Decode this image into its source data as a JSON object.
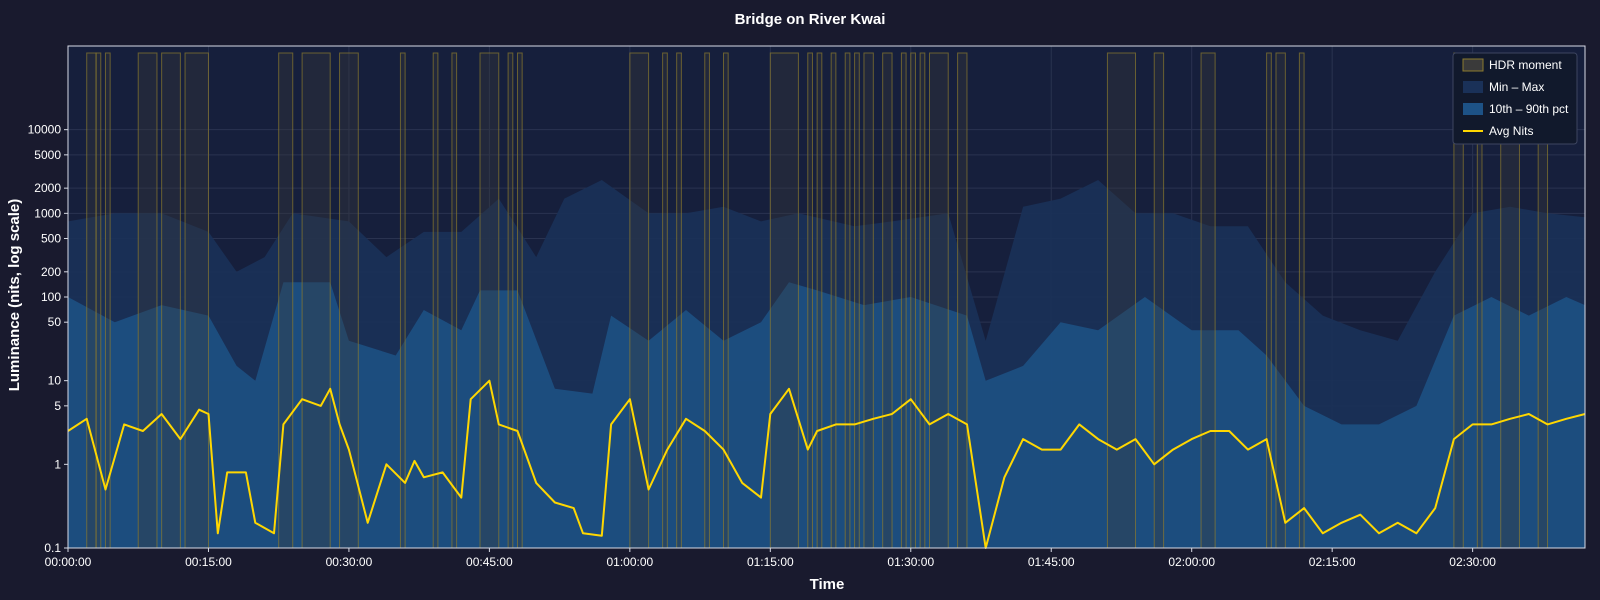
{
  "chart_data": {
    "type": "area",
    "title": "Bridge on River Kwai",
    "xlabel": "Time",
    "ylabel": "Luminance (nits, log scale)",
    "y_scale": "log",
    "ylim": [
      0.1,
      100000
    ],
    "xlim_minutes": [
      0,
      162
    ],
    "grid": true,
    "legend_position": "top-right",
    "y_ticks": [
      0.1,
      1,
      5,
      10,
      50,
      100,
      200,
      500,
      1000,
      2000,
      5000,
      10000
    ],
    "y_tick_labels": [
      "0.1",
      "1",
      "5",
      "10",
      "50",
      "100",
      "200",
      "500",
      "1000",
      "2000",
      "5000",
      "10000"
    ],
    "x_ticks_minutes": [
      0,
      15,
      30,
      45,
      60,
      75,
      90,
      105,
      120,
      135,
      150
    ],
    "x_tick_labels": [
      "00:00:00",
      "00:15:00",
      "00:30:00",
      "00:45:00",
      "01:00:00",
      "01:15:00",
      "01:30:00",
      "01:45:00",
      "02:00:00",
      "02:15:00",
      "02:30:00"
    ],
    "legend": [
      "HDR moment",
      "Min – Max",
      "10th – 90th pct",
      "Avg Nits"
    ],
    "colors": {
      "background": "#191a2e",
      "plot_background": "#161f3c",
      "min_max": "#1a3158",
      "pct_band": "#1d5286",
      "avg_line": "#ffd700",
      "hdr_fill": "#3a3a3a",
      "hdr_edge": "#8c7a2e"
    },
    "hdr_moments_minutes": [
      [
        2,
        3
      ],
      [
        3,
        3.5
      ],
      [
        4,
        4.5
      ],
      [
        7.5,
        9.5
      ],
      [
        10,
        12
      ],
      [
        12.5,
        15
      ],
      [
        22.5,
        24
      ],
      [
        25,
        28
      ],
      [
        29,
        31
      ],
      [
        35.5,
        36
      ],
      [
        39,
        39.5
      ],
      [
        41,
        41.5
      ],
      [
        44,
        46
      ],
      [
        47,
        47.5
      ],
      [
        48,
        48.5
      ],
      [
        60,
        62
      ],
      [
        63.5,
        64
      ],
      [
        65,
        65.5
      ],
      [
        68,
        68.5
      ],
      [
        70,
        70.5
      ],
      [
        75,
        78
      ],
      [
        79,
        79.5
      ],
      [
        80,
        80.5
      ],
      [
        81.5,
        82
      ],
      [
        83,
        83.5
      ],
      [
        84,
        84.5
      ],
      [
        85,
        86
      ],
      [
        87,
        88
      ],
      [
        89,
        89.5
      ],
      [
        90,
        90.5
      ],
      [
        91,
        91.5
      ],
      [
        92,
        94
      ],
      [
        95,
        96
      ],
      [
        111,
        114
      ],
      [
        116,
        117
      ],
      [
        121,
        122.5
      ],
      [
        128,
        128.5
      ],
      [
        129,
        130
      ],
      [
        131.5,
        132
      ],
      [
        148,
        149
      ],
      [
        150.5,
        151
      ],
      [
        153,
        155
      ],
      [
        157,
        158
      ]
    ],
    "avg_nits_series": [
      {
        "t": 0,
        "v": 2.5
      },
      {
        "t": 2,
        "v": 3.5
      },
      {
        "t": 4,
        "v": 0.5
      },
      {
        "t": 6,
        "v": 3
      },
      {
        "t": 8,
        "v": 2.5
      },
      {
        "t": 10,
        "v": 4
      },
      {
        "t": 12,
        "v": 2
      },
      {
        "t": 14,
        "v": 4.5
      },
      {
        "t": 15,
        "v": 4
      },
      {
        "t": 16,
        "v": 0.15
      },
      {
        "t": 17,
        "v": 0.8
      },
      {
        "t": 19,
        "v": 0.8
      },
      {
        "t": 20,
        "v": 0.2
      },
      {
        "t": 22,
        "v": 0.15
      },
      {
        "t": 23,
        "v": 3
      },
      {
        "t": 25,
        "v": 6
      },
      {
        "t": 27,
        "v": 5
      },
      {
        "t": 28,
        "v": 8
      },
      {
        "t": 29,
        "v": 3
      },
      {
        "t": 30,
        "v": 1.5
      },
      {
        "t": 32,
        "v": 0.2
      },
      {
        "t": 34,
        "v": 1
      },
      {
        "t": 36,
        "v": 0.6
      },
      {
        "t": 37,
        "v": 1.1
      },
      {
        "t": 38,
        "v": 0.7
      },
      {
        "t": 40,
        "v": 0.8
      },
      {
        "t": 42,
        "v": 0.4
      },
      {
        "t": 43,
        "v": 6
      },
      {
        "t": 45,
        "v": 10
      },
      {
        "t": 46,
        "v": 3
      },
      {
        "t": 48,
        "v": 2.5
      },
      {
        "t": 50,
        "v": 0.6
      },
      {
        "t": 52,
        "v": 0.35
      },
      {
        "t": 54,
        "v": 0.3
      },
      {
        "t": 55,
        "v": 0.15
      },
      {
        "t": 57,
        "v": 0.14
      },
      {
        "t": 58,
        "v": 3
      },
      {
        "t": 60,
        "v": 6
      },
      {
        "t": 62,
        "v": 0.5
      },
      {
        "t": 64,
        "v": 1.5
      },
      {
        "t": 66,
        "v": 3.5
      },
      {
        "t": 68,
        "v": 2.5
      },
      {
        "t": 70,
        "v": 1.5
      },
      {
        "t": 72,
        "v": 0.6
      },
      {
        "t": 74,
        "v": 0.4
      },
      {
        "t": 75,
        "v": 4
      },
      {
        "t": 77,
        "v": 8
      },
      {
        "t": 79,
        "v": 1.5
      },
      {
        "t": 80,
        "v": 2.5
      },
      {
        "t": 82,
        "v": 3
      },
      {
        "t": 84,
        "v": 3
      },
      {
        "t": 86,
        "v": 3.5
      },
      {
        "t": 88,
        "v": 4
      },
      {
        "t": 90,
        "v": 6
      },
      {
        "t": 92,
        "v": 3
      },
      {
        "t": 94,
        "v": 4
      },
      {
        "t": 96,
        "v": 3
      },
      {
        "t": 98,
        "v": 0.1
      },
      {
        "t": 100,
        "v": 0.7
      },
      {
        "t": 102,
        "v": 2
      },
      {
        "t": 104,
        "v": 1.5
      },
      {
        "t": 106,
        "v": 1.5
      },
      {
        "t": 108,
        "v": 3
      },
      {
        "t": 110,
        "v": 2
      },
      {
        "t": 112,
        "v": 1.5
      },
      {
        "t": 114,
        "v": 2
      },
      {
        "t": 116,
        "v": 1
      },
      {
        "t": 118,
        "v": 1.5
      },
      {
        "t": 120,
        "v": 2
      },
      {
        "t": 122,
        "v": 2.5
      },
      {
        "t": 124,
        "v": 2.5
      },
      {
        "t": 126,
        "v": 1.5
      },
      {
        "t": 128,
        "v": 2
      },
      {
        "t": 130,
        "v": 0.2
      },
      {
        "t": 132,
        "v": 0.3
      },
      {
        "t": 134,
        "v": 0.15
      },
      {
        "t": 136,
        "v": 0.2
      },
      {
        "t": 138,
        "v": 0.25
      },
      {
        "t": 140,
        "v": 0.15
      },
      {
        "t": 142,
        "v": 0.2
      },
      {
        "t": 144,
        "v": 0.15
      },
      {
        "t": 146,
        "v": 0.3
      },
      {
        "t": 148,
        "v": 2
      },
      {
        "t": 150,
        "v": 3
      },
      {
        "t": 152,
        "v": 3
      },
      {
        "t": 154,
        "v": 3.5
      },
      {
        "t": 156,
        "v": 4
      },
      {
        "t": 158,
        "v": 3
      },
      {
        "t": 160,
        "v": 3.5
      },
      {
        "t": 162,
        "v": 4
      }
    ],
    "pct_band_series": [
      {
        "t": 0,
        "lo": 0.1,
        "hi": 100
      },
      {
        "t": 5,
        "lo": 0.1,
        "hi": 50
      },
      {
        "t": 10,
        "lo": 0.1,
        "hi": 80
      },
      {
        "t": 15,
        "lo": 0.1,
        "hi": 60
      },
      {
        "t": 18,
        "lo": 0.1,
        "hi": 15
      },
      {
        "t": 20,
        "lo": 0.1,
        "hi": 10
      },
      {
        "t": 23,
        "lo": 0.1,
        "hi": 150
      },
      {
        "t": 28,
        "lo": 0.1,
        "hi": 150
      },
      {
        "t": 30,
        "lo": 0.1,
        "hi": 30
      },
      {
        "t": 35,
        "lo": 0.1,
        "hi": 20
      },
      {
        "t": 38,
        "lo": 0.1,
        "hi": 70
      },
      {
        "t": 42,
        "lo": 0.1,
        "hi": 40
      },
      {
        "t": 44,
        "lo": 0.1,
        "hi": 120
      },
      {
        "t": 48,
        "lo": 0.1,
        "hi": 120
      },
      {
        "t": 52,
        "lo": 0.1,
        "hi": 8
      },
      {
        "t": 56,
        "lo": 0.1,
        "hi": 7
      },
      {
        "t": 58,
        "lo": 0.1,
        "hi": 60
      },
      {
        "t": 62,
        "lo": 0.1,
        "hi": 30
      },
      {
        "t": 66,
        "lo": 0.1,
        "hi": 70
      },
      {
        "t": 70,
        "lo": 0.1,
        "hi": 30
      },
      {
        "t": 74,
        "lo": 0.1,
        "hi": 50
      },
      {
        "t": 77,
        "lo": 0.1,
        "hi": 150
      },
      {
        "t": 80,
        "lo": 0.1,
        "hi": 120
      },
      {
        "t": 85,
        "lo": 0.1,
        "hi": 80
      },
      {
        "t": 90,
        "lo": 0.1,
        "hi": 100
      },
      {
        "t": 96,
        "lo": 0.1,
        "hi": 60
      },
      {
        "t": 98,
        "lo": 0.1,
        "hi": 10
      },
      {
        "t": 102,
        "lo": 0.1,
        "hi": 15
      },
      {
        "t": 106,
        "lo": 0.1,
        "hi": 50
      },
      {
        "t": 110,
        "lo": 0.1,
        "hi": 40
      },
      {
        "t": 115,
        "lo": 0.1,
        "hi": 100
      },
      {
        "t": 120,
        "lo": 0.1,
        "hi": 40
      },
      {
        "t": 125,
        "lo": 0.1,
        "hi": 40
      },
      {
        "t": 128,
        "lo": 0.1,
        "hi": 20
      },
      {
        "t": 132,
        "lo": 0.1,
        "hi": 5
      },
      {
        "t": 136,
        "lo": 0.1,
        "hi": 3
      },
      {
        "t": 140,
        "lo": 0.1,
        "hi": 3
      },
      {
        "t": 144,
        "lo": 0.1,
        "hi": 5
      },
      {
        "t": 148,
        "lo": 0.1,
        "hi": 60
      },
      {
        "t": 152,
        "lo": 0.1,
        "hi": 100
      },
      {
        "t": 156,
        "lo": 0.1,
        "hi": 60
      },
      {
        "t": 160,
        "lo": 0.1,
        "hi": 100
      },
      {
        "t": 162,
        "lo": 0.1,
        "hi": 80
      }
    ],
    "min_max_series": [
      {
        "t": 0,
        "lo": 0.1,
        "hi": 800
      },
      {
        "t": 5,
        "lo": 0.1,
        "hi": 1000
      },
      {
        "t": 10,
        "lo": 0.1,
        "hi": 1000
      },
      {
        "t": 15,
        "lo": 0.1,
        "hi": 600
      },
      {
        "t": 18,
        "lo": 0.1,
        "hi": 200
      },
      {
        "t": 21,
        "lo": 0.1,
        "hi": 300
      },
      {
        "t": 24,
        "lo": 0.1,
        "hi": 1000
      },
      {
        "t": 30,
        "lo": 0.1,
        "hi": 800
      },
      {
        "t": 34,
        "lo": 0.1,
        "hi": 300
      },
      {
        "t": 38,
        "lo": 0.1,
        "hi": 600
      },
      {
        "t": 42,
        "lo": 0.1,
        "hi": 600
      },
      {
        "t": 46,
        "lo": 0.1,
        "hi": 1500
      },
      {
        "t": 50,
        "lo": 0.1,
        "hi": 300
      },
      {
        "t": 53,
        "lo": 0.1,
        "hi": 1500
      },
      {
        "t": 57,
        "lo": 0.1,
        "hi": 2500
      },
      {
        "t": 62,
        "lo": 0.1,
        "hi": 1000
      },
      {
        "t": 66,
        "lo": 0.1,
        "hi": 1000
      },
      {
        "t": 70,
        "lo": 0.1,
        "hi": 1200
      },
      {
        "t": 74,
        "lo": 0.1,
        "hi": 800
      },
      {
        "t": 78,
        "lo": 0.1,
        "hi": 1000
      },
      {
        "t": 84,
        "lo": 0.1,
        "hi": 700
      },
      {
        "t": 88,
        "lo": 0.1,
        "hi": 800
      },
      {
        "t": 94,
        "lo": 0.1,
        "hi": 1000
      },
      {
        "t": 98,
        "lo": 0.1,
        "hi": 30
      },
      {
        "t": 102,
        "lo": 0.1,
        "hi": 1200
      },
      {
        "t": 106,
        "lo": 0.1,
        "hi": 1500
      },
      {
        "t": 110,
        "lo": 0.1,
        "hi": 2500
      },
      {
        "t": 114,
        "lo": 0.1,
        "hi": 1000
      },
      {
        "t": 118,
        "lo": 0.1,
        "hi": 1000
      },
      {
        "t": 122,
        "lo": 0.1,
        "hi": 700
      },
      {
        "t": 126,
        "lo": 0.1,
        "hi": 700
      },
      {
        "t": 130,
        "lo": 0.1,
        "hi": 150
      },
      {
        "t": 134,
        "lo": 0.1,
        "hi": 60
      },
      {
        "t": 138,
        "lo": 0.1,
        "hi": 40
      },
      {
        "t": 142,
        "lo": 0.1,
        "hi": 30
      },
      {
        "t": 146,
        "lo": 0.1,
        "hi": 200
      },
      {
        "t": 150,
        "lo": 0.1,
        "hi": 1000
      },
      {
        "t": 154,
        "lo": 0.1,
        "hi": 1200
      },
      {
        "t": 158,
        "lo": 0.1,
        "hi": 1000
      },
      {
        "t": 162,
        "lo": 0.1,
        "hi": 900
      }
    ]
  }
}
